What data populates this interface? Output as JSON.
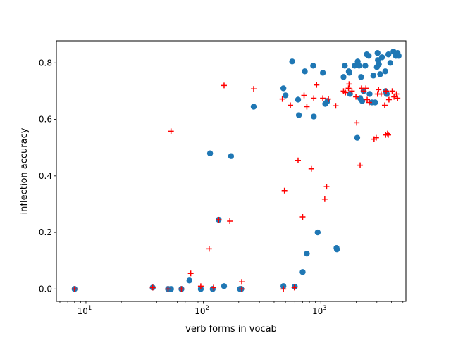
{
  "chart_data": {
    "type": "scatter",
    "title": "",
    "xlabel": "verb forms in vocab",
    "ylabel": "inflection accuracy",
    "xscale": "log",
    "xlim": [
      5.6,
      5300
    ],
    "ylim": [
      -0.044,
      0.878
    ],
    "grid": false,
    "legend": "none",
    "x_tick_labels": [
      {
        "value": 10,
        "base": "10",
        "exp": "1"
      },
      {
        "value": 100,
        "base": "10",
        "exp": "2"
      },
      {
        "value": 1000,
        "base": "10",
        "exp": "3"
      }
    ],
    "y_ticks": [
      0.0,
      0.2,
      0.4,
      0.6,
      0.8
    ],
    "y_tick_labels": [
      "0.0",
      "0.2",
      "0.4",
      "0.6",
      "0.8"
    ],
    "series": [
      {
        "marker": "circle",
        "color": "#1f77b4",
        "points": [
          [
            8,
            0.0
          ],
          [
            37,
            0.005
          ],
          [
            50,
            0.0
          ],
          [
            53,
            0.0
          ],
          [
            65,
            0.0
          ],
          [
            76,
            0.03
          ],
          [
            95,
            0.0
          ],
          [
            114,
            0.48
          ],
          [
            120,
            0.0
          ],
          [
            135,
            0.245
          ],
          [
            150,
            0.01
          ],
          [
            172,
            0.47
          ],
          [
            205,
            0.0
          ],
          [
            210,
            0.0
          ],
          [
            268,
            0.645
          ],
          [
            480,
            0.71
          ],
          [
            500,
            0.685
          ],
          [
            480,
            0.01
          ],
          [
            570,
            0.805
          ],
          [
            600,
            0.008
          ],
          [
            640,
            0.67
          ],
          [
            650,
            0.615
          ],
          [
            700,
            0.06
          ],
          [
            730,
            0.77
          ],
          [
            760,
            0.125
          ],
          [
            860,
            0.79
          ],
          [
            870,
            0.61
          ],
          [
            940,
            0.2
          ],
          [
            1040,
            0.765
          ],
          [
            1090,
            0.655
          ],
          [
            1140,
            0.665
          ],
          [
            1360,
            0.145
          ],
          [
            1370,
            0.14
          ],
          [
            1560,
            0.75
          ],
          [
            1600,
            0.79
          ],
          [
            1730,
            0.77
          ],
          [
            1750,
            0.765
          ],
          [
            1770,
            0.69
          ],
          [
            1940,
            0.79
          ],
          [
            2040,
            0.535
          ],
          [
            2060,
            0.805
          ],
          [
            2120,
            0.79
          ],
          [
            2160,
            0.675
          ],
          [
            2200,
            0.75
          ],
          [
            2250,
            0.665
          ],
          [
            2310,
            0.7
          ],
          [
            2390,
            0.79
          ],
          [
            2460,
            0.83
          ],
          [
            2560,
            0.825
          ],
          [
            2600,
            0.69
          ],
          [
            2720,
            0.66
          ],
          [
            2800,
            0.755
          ],
          [
            2900,
            0.66
          ],
          [
            3000,
            0.785
          ],
          [
            3040,
            0.835
          ],
          [
            3060,
            0.81
          ],
          [
            3120,
            0.795
          ],
          [
            3200,
            0.76
          ],
          [
            3320,
            0.82
          ],
          [
            3540,
            0.77
          ],
          [
            3560,
            0.7
          ],
          [
            3640,
            0.69
          ],
          [
            3760,
            0.83
          ],
          [
            3900,
            0.8
          ],
          [
            4150,
            0.84
          ],
          [
            4350,
            0.825
          ],
          [
            4500,
            0.835
          ],
          [
            4600,
            0.825
          ]
        ]
      },
      {
        "marker": "plus",
        "color": "#ff0000",
        "points": [
          [
            8,
            0.0
          ],
          [
            37,
            0.005
          ],
          [
            50,
            0.0
          ],
          [
            53,
            0.558
          ],
          [
            65,
            0.0
          ],
          [
            78,
            0.055
          ],
          [
            95,
            0.01
          ],
          [
            112,
            0.142
          ],
          [
            122,
            0.005
          ],
          [
            135,
            0.245
          ],
          [
            150,
            0.72
          ],
          [
            168,
            0.24
          ],
          [
            212,
            0.025
          ],
          [
            212,
            0.0
          ],
          [
            268,
            0.708
          ],
          [
            470,
            0.672
          ],
          [
            480,
            0.0
          ],
          [
            490,
            0.348
          ],
          [
            550,
            0.65
          ],
          [
            595,
            0.005
          ],
          [
            640,
            0.455
          ],
          [
            700,
            0.255
          ],
          [
            720,
            0.685
          ],
          [
            760,
            0.645
          ],
          [
            830,
            0.425
          ],
          [
            870,
            0.675
          ],
          [
            920,
            0.722
          ],
          [
            1040,
            0.675
          ],
          [
            1080,
            0.318
          ],
          [
            1120,
            0.362
          ],
          [
            1160,
            0.672
          ],
          [
            1340,
            0.648
          ],
          [
            1560,
            0.7
          ],
          [
            1620,
            0.695
          ],
          [
            1720,
            0.71
          ],
          [
            1740,
            0.725
          ],
          [
            1840,
            0.7
          ],
          [
            1990,
            0.68
          ],
          [
            2020,
            0.588
          ],
          [
            2160,
            0.438
          ],
          [
            2220,
            0.71
          ],
          [
            2320,
            0.7
          ],
          [
            2420,
            0.71
          ],
          [
            2480,
            0.67
          ],
          [
            2580,
            0.66
          ],
          [
            2840,
            0.53
          ],
          [
            2960,
            0.535
          ],
          [
            3040,
            0.69
          ],
          [
            3100,
            0.705
          ],
          [
            3260,
            0.69
          ],
          [
            3500,
            0.65
          ],
          [
            3560,
            0.545
          ],
          [
            3600,
            0.7
          ],
          [
            3700,
            0.55
          ],
          [
            3750,
            0.545
          ],
          [
            3800,
            0.67
          ],
          [
            4050,
            0.7
          ],
          [
            4200,
            0.68
          ],
          [
            4400,
            0.69
          ],
          [
            4500,
            0.675
          ]
        ]
      }
    ]
  }
}
